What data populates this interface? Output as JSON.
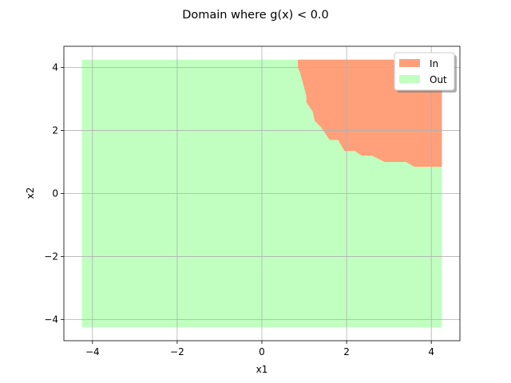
{
  "chart_data": {
    "type": "area",
    "title": "Domain where g(x) < 0.0",
    "xlabel": "x1",
    "ylabel": "x2",
    "xlim": [
      -4.675,
      4.675
    ],
    "ylim": [
      -4.675,
      4.675
    ],
    "xticks": [
      -4,
      -2,
      0,
      2,
      4
    ],
    "yticks": [
      -4,
      -2,
      0,
      2,
      4
    ],
    "xtick_labels": [
      "−4",
      "−2",
      "0",
      "2",
      "4"
    ],
    "ytick_labels": [
      "−4",
      "−2",
      "0",
      "2",
      "4"
    ],
    "grid": true,
    "legend_position": "top-right",
    "domain": {
      "x": [
        -4.25,
        4.25
      ],
      "y": [
        -4.25,
        4.25
      ]
    },
    "series": [
      {
        "name": "In",
        "color": "#ffa07a",
        "boundary": [
          [
            0.85,
            4.25
          ],
          [
            4.25,
            4.25
          ],
          [
            4.25,
            0.85
          ],
          [
            3.6,
            0.85
          ],
          [
            3.4,
            1.0
          ],
          [
            2.9,
            1.0
          ],
          [
            2.6,
            1.2
          ],
          [
            2.35,
            1.2
          ],
          [
            2.2,
            1.35
          ],
          [
            1.95,
            1.35
          ],
          [
            1.8,
            1.7
          ],
          [
            1.6,
            1.7
          ],
          [
            1.4,
            2.1
          ],
          [
            1.25,
            2.3
          ],
          [
            1.2,
            2.6
          ],
          [
            1.05,
            2.9
          ],
          [
            1.05,
            3.1
          ],
          [
            0.95,
            3.6
          ],
          [
            0.9,
            3.85
          ],
          [
            0.85,
            4.0
          ]
        ]
      },
      {
        "name": "Out",
        "color": "#c1ffc1",
        "region": "complement"
      }
    ]
  }
}
